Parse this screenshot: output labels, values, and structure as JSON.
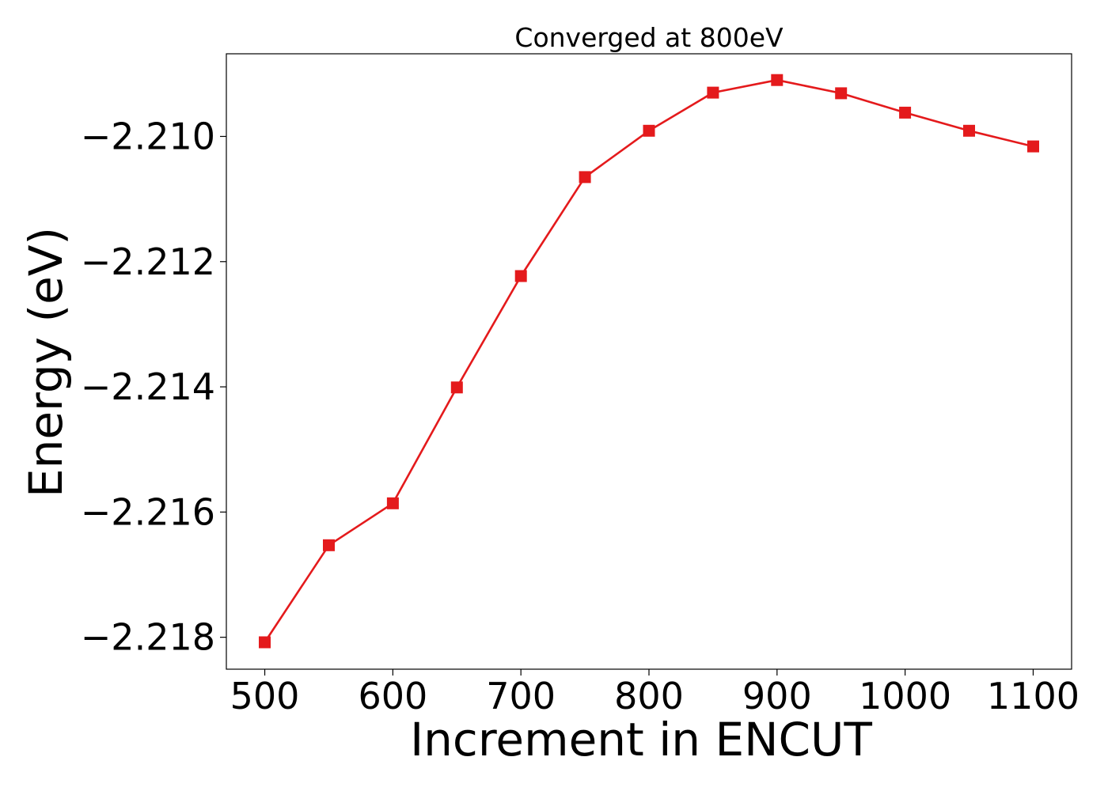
{
  "chart_data": {
    "type": "line",
    "title": "Converged at 800eV",
    "xlabel": "Increment in ENCUT",
    "ylabel": "Energy (eV)",
    "x": [
      500,
      550,
      600,
      650,
      700,
      750,
      800,
      850,
      900,
      950,
      1000,
      1050,
      1100
    ],
    "series": [
      {
        "values": [
          -2.21808,
          -2.21653,
          -2.21586,
          -2.21401,
          -2.21223,
          -2.21065,
          -2.20991,
          -2.2093,
          -2.2091,
          -2.20931,
          -2.20962,
          -2.20991,
          -2.21016
        ],
        "color": "#e41a1c",
        "marker": "square"
      }
    ],
    "xlim": [
      470,
      1130
    ],
    "ylim": [
      -2.21851,
      -2.20868
    ],
    "xticks": [
      500,
      600,
      700,
      800,
      900,
      1000,
      1100
    ],
    "xtick_labels": [
      "500",
      "600",
      "700",
      "800",
      "900",
      "1000",
      "1100"
    ],
    "yticks": [
      -2.218,
      -2.216,
      -2.214,
      -2.212,
      -2.21
    ],
    "ytick_labels": [
      "−2.218",
      "−2.216",
      "−2.214",
      "−2.212",
      "−2.210"
    ],
    "grid": false,
    "legend": "none"
  }
}
